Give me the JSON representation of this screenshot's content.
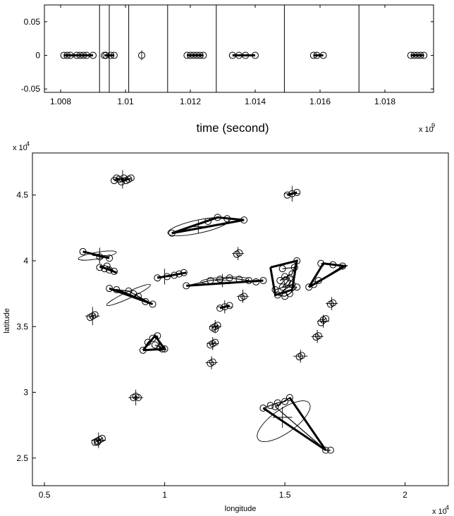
{
  "chart_data": [
    {
      "type": "scatter",
      "xlabel": "time (second)",
      "x_multiplier": "x 10",
      "x_multiplier_exp": "9",
      "xlim": [
        1.0075,
        1.0195
      ],
      "ylim": [
        -0.055,
        0.075
      ],
      "x_ticks": [
        "1.008",
        "1.01",
        "1.012",
        "1.014",
        "1.016",
        "1.018"
      ],
      "y_ticks": [
        "0.05",
        "0",
        "-0.05"
      ],
      "x_tick_values": [
        1.008,
        1.01,
        1.012,
        1.014,
        1.016,
        1.018
      ],
      "y_tick_values": [
        0.05,
        0,
        -0.05
      ],
      "boundaries": [
        1.0092,
        1.0095,
        1.0101,
        1.0113,
        1.0128,
        1.0149,
        1.0172
      ],
      "clusters": [
        {
          "points": [
            1.0081,
            1.0082,
            1.0083,
            1.0085,
            1.0086,
            1.0087,
            1.0088,
            1.009
          ],
          "line": true
        },
        {
          "points": [
            1.00935,
            1.0094,
            1.00955,
            1.00965
          ],
          "line": true
        },
        {
          "points": [
            1.0105
          ],
          "line": false,
          "cross": true
        },
        {
          "points": [
            1.0119,
            1.012,
            1.0121,
            1.0122,
            1.0123,
            1.0124
          ],
          "line": true
        },
        {
          "points": [
            1.0133,
            1.0135,
            1.0137,
            1.014
          ],
          "line": true
        },
        {
          "points": [
            1.0158,
            1.0159,
            1.0161
          ],
          "line": true
        },
        {
          "points": [
            1.0188,
            1.0189,
            1.019,
            1.0191,
            1.0192
          ],
          "line": true
        }
      ]
    },
    {
      "type": "scatter",
      "xlabel": "longitude",
      "ylabel": "latitude",
      "x_multiplier": "x 10",
      "x_multiplier_exp": "4",
      "y_multiplier": "x 10",
      "y_multiplier_exp": "4",
      "xlim": [
        0.45,
        2.18
      ],
      "ylim": [
        2.29,
        4.82
      ],
      "x_ticks": [
        "0.5",
        "1",
        "1.5",
        "2"
      ],
      "y_ticks": [
        "4.5",
        "4",
        "3.5",
        "3",
        "2.5"
      ],
      "x_tick_values": [
        0.5,
        1.0,
        1.5,
        2.0
      ],
      "y_tick_values": [
        4.5,
        4.0,
        3.5,
        3.0,
        2.5
      ],
      "groups": [
        {
          "pts": [
            [
              0.79,
              4.61
            ],
            [
              0.81,
              4.62
            ],
            [
              0.83,
              4.63
            ],
            [
              0.85,
              4.62
            ],
            [
              0.82,
              4.6
            ],
            [
              0.8,
              4.63
            ],
            [
              0.84,
              4.61
            ],
            [
              0.86,
              4.63
            ]
          ],
          "cross": [
            0.825,
            4.62,
            0.04,
            0.07
          ]
        },
        {
          "pts": [
            [
              1.51,
              4.5
            ],
            [
              1.53,
              4.51
            ],
            [
              1.55,
              4.52
            ]
          ],
          "cross": [
            1.53,
            4.51,
            0.03,
            0.06
          ],
          "thick": true
        },
        {
          "pts": [
            [
              1.03,
              4.21
            ],
            [
              1.18,
              4.3
            ],
            [
              1.22,
              4.33
            ],
            [
              1.26,
              4.32
            ],
            [
              1.33,
              4.31
            ]
          ],
          "thick_path": [
            [
              1.03,
              4.21
            ],
            [
              1.22,
              4.33
            ],
            [
              1.33,
              4.31
            ],
            [
              1.03,
              4.21
            ]
          ],
          "ellipse": [
            1.14,
            4.26,
            0.13,
            0.05,
            -12
          ],
          "cross": [
            1.14,
            4.26,
            0.03,
            0.05
          ]
        },
        {
          "pts": [
            [
              0.66,
              4.07
            ],
            [
              0.73,
              4.03
            ],
            [
              0.77,
              4.02
            ]
          ],
          "ellipse": [
            0.72,
            4.04,
            0.08,
            0.025,
            -10
          ],
          "cross": [
            0.73,
            4.04,
            0.03,
            0.06
          ],
          "thick_path": [
            [
              0.66,
              4.07
            ],
            [
              0.77,
              4.02
            ]
          ]
        },
        {
          "pts": [
            [
              1.31,
              4.06
            ],
            [
              1.3,
              4.05
            ]
          ],
          "cross": [
            1.305,
            4.055,
            0.025,
            0.05
          ]
        },
        {
          "pts": [
            [
              0.73,
              3.95
            ],
            [
              0.75,
              3.94
            ],
            [
              0.77,
              3.93
            ],
            [
              0.79,
              3.92
            ],
            [
              0.76,
              3.96
            ]
          ],
          "thick_path": [
            [
              0.73,
              3.96
            ],
            [
              0.8,
              3.91
            ]
          ]
        },
        {
          "pts": [
            [
              1.49,
              3.94
            ],
            [
              1.54,
              3.95
            ],
            [
              1.55,
              4.0
            ],
            [
              1.53,
              3.9
            ],
            [
              1.48,
              3.85
            ],
            [
              1.5,
              3.88
            ],
            [
              1.52,
              3.87
            ],
            [
              1.51,
              3.84
            ],
            [
              1.49,
              3.8
            ],
            [
              1.55,
              3.8
            ],
            [
              1.52,
              3.75
            ],
            [
              1.5,
              3.73
            ],
            [
              1.47,
              3.74
            ],
            [
              1.53,
              3.82
            ],
            [
              1.46,
              3.78
            ]
          ],
          "thick_path": [
            [
              1.44,
              3.95
            ],
            [
              1.55,
              4.0
            ],
            [
              1.53,
              3.78
            ],
            [
              1.46,
              3.74
            ],
            [
              1.44,
              3.95
            ]
          ]
        },
        {
          "pts": [
            [
              1.65,
              3.98
            ],
            [
              1.7,
              3.97
            ],
            [
              1.74,
              3.96
            ],
            [
              1.62,
              3.82
            ],
            [
              1.6,
              3.8
            ],
            [
              1.64,
              3.85
            ]
          ],
          "thick_path": [
            [
              1.6,
              3.8
            ],
            [
              1.66,
              3.98
            ],
            [
              1.75,
              3.96
            ],
            [
              1.6,
              3.8
            ]
          ]
        },
        {
          "pts": [
            [
              0.97,
              3.87
            ],
            [
              1.01,
              3.88
            ],
            [
              1.04,
              3.89
            ],
            [
              1.06,
              3.9
            ],
            [
              1.08,
              3.91
            ]
          ],
          "cross": [
            1.0,
            3.88,
            0.03,
            0.06
          ],
          "thick_path": [
            [
              0.97,
              3.87
            ],
            [
              1.09,
              3.91
            ]
          ]
        },
        {
          "pts": [
            [
              1.09,
              3.81
            ],
            [
              1.19,
              3.85
            ],
            [
              1.23,
              3.86
            ],
            [
              1.27,
              3.87
            ],
            [
              1.31,
              3.86
            ],
            [
              1.35,
              3.85
            ],
            [
              1.38,
              3.84
            ],
            [
              1.41,
              3.85
            ]
          ],
          "ellipse": [
            1.25,
            3.85,
            0.1,
            0.025,
            -3
          ],
          "thick_path": [
            [
              1.09,
              3.81
            ],
            [
              1.41,
              3.85
            ]
          ],
          "cross": [
            1.24,
            3.85,
            0.03,
            0.05
          ]
        },
        {
          "pts": [
            [
              0.77,
              3.79
            ],
            [
              0.8,
              3.78
            ],
            [
              0.85,
              3.77
            ],
            [
              0.89,
              3.73
            ],
            [
              0.92,
              3.69
            ],
            [
              0.95,
              3.67
            ],
            [
              0.87,
              3.75
            ]
          ],
          "ellipse": [
            0.85,
            3.74,
            0.1,
            0.025,
            -25
          ],
          "thick_path": [
            [
              0.77,
              3.79
            ],
            [
              0.95,
              3.67
            ],
            [
              0.8,
              3.78
            ]
          ]
        },
        {
          "pts": [
            [
              1.33,
              3.73
            ],
            [
              1.32,
              3.72
            ]
          ],
          "cross": [
            1.325,
            3.73,
            0.025,
            0.05
          ]
        },
        {
          "pts": [
            [
              1.69,
              3.67
            ],
            [
              1.7,
              3.68
            ]
          ],
          "cross": [
            1.695,
            3.675,
            0.025,
            0.05
          ]
        },
        {
          "pts": [
            [
              1.23,
              3.64
            ],
            [
              1.25,
              3.65
            ],
            [
              1.27,
              3.66
            ]
          ],
          "cross": [
            1.25,
            3.65,
            0.03,
            0.05
          ],
          "thick_path": [
            [
              1.23,
              3.64
            ],
            [
              1.27,
              3.66
            ]
          ]
        },
        {
          "pts": [
            [
              0.69,
              3.57
            ],
            [
              0.7,
              3.58
            ],
            [
              0.71,
              3.59
            ]
          ],
          "cross": [
            0.7,
            3.58,
            0.03,
            0.07
          ]
        },
        {
          "pts": [
            [
              1.65,
              3.53
            ],
            [
              1.66,
              3.55
            ],
            [
              1.67,
              3.56
            ]
          ],
          "cross": [
            1.66,
            3.54,
            0.025,
            0.05
          ]
        },
        {
          "pts": [
            [
              1.2,
              3.49
            ],
            [
              1.21,
              3.5
            ],
            [
              1.22,
              3.51
            ],
            [
              1.21,
              3.48
            ]
          ],
          "cross": [
            1.21,
            3.5,
            0.025,
            0.05
          ]
        },
        {
          "pts": [
            [
              1.63,
              3.42
            ],
            [
              1.64,
              3.43
            ]
          ],
          "cross": [
            1.635,
            3.425,
            0.025,
            0.05
          ]
        },
        {
          "pts": [
            [
              0.91,
              3.32
            ],
            [
              0.93,
              3.38
            ],
            [
              0.95,
              3.41
            ],
            [
              0.97,
              3.43
            ],
            [
              0.98,
              3.34
            ],
            [
              0.99,
              3.33
            ],
            [
              1.0,
              3.33
            ],
            [
              0.96,
              3.36
            ]
          ],
          "thick_path": [
            [
              0.91,
              3.32
            ],
            [
              0.96,
              3.43
            ],
            [
              1.0,
              3.33
            ],
            [
              0.91,
              3.32
            ]
          ]
        },
        {
          "pts": [
            [
              1.2,
              3.37
            ],
            [
              1.21,
              3.38
            ],
            [
              1.19,
              3.36
            ]
          ],
          "cross": [
            1.2,
            3.37,
            0.025,
            0.05
          ]
        },
        {
          "pts": [
            [
              1.56,
              3.27
            ],
            [
              1.57,
              3.28
            ]
          ],
          "cross": [
            1.565,
            3.275,
            0.03,
            0.05
          ]
        },
        {
          "pts": [
            [
              1.19,
              3.22
            ],
            [
              1.2,
              3.23
            ]
          ],
          "cross": [
            1.195,
            3.225,
            0.025,
            0.05
          ]
        },
        {
          "pts": [
            [
              0.87,
              2.96
            ],
            [
              0.88,
              2.97
            ],
            [
              0.89,
              2.96
            ]
          ],
          "cross": [
            0.88,
            2.96,
            0.03,
            0.06
          ]
        },
        {
          "pts": [
            [
              1.41,
              2.88
            ],
            [
              1.44,
              2.9
            ],
            [
              1.47,
              2.92
            ],
            [
              1.5,
              2.93
            ],
            [
              1.52,
              2.96
            ],
            [
              1.46,
              2.89
            ],
            [
              1.67,
              2.56
            ],
            [
              1.69,
              2.56
            ]
          ],
          "ellipse": [
            1.495,
            2.78,
            0.13,
            0.09,
            -35
          ],
          "thick_path": [
            [
              1.41,
              2.88
            ],
            [
              1.67,
              2.56
            ],
            [
              1.52,
              2.96
            ]
          ],
          "cross": [
            1.49,
            2.81,
            0.04,
            0.08
          ]
        },
        {
          "pts": [
            [
              0.71,
              2.62
            ],
            [
              0.72,
              2.63
            ],
            [
              0.73,
              2.64
            ],
            [
              0.74,
              2.65
            ],
            [
              0.72,
              2.62
            ]
          ],
          "cross": [
            0.725,
            2.635,
            0.03,
            0.06
          ]
        }
      ]
    }
  ]
}
